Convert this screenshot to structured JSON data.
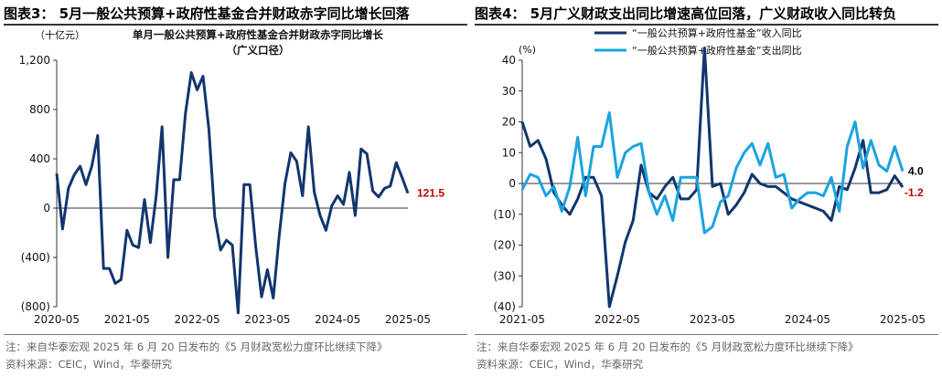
{
  "left": {
    "figure_title": "图表3： 5月一般公共预算+政府性基金合并财政赤字同比增长回落",
    "note": "注：来自华泰宏观 2025 年 6 月 20 日发布的《5 月财政宽松力度环比继续下降》",
    "source": "资料来源：CEIC，Wind，华泰研究",
    "unit_label": "（十亿元）",
    "subtitle_line1": "单月一般公共预算+政府性基金合并财政赤字同比增长",
    "subtitle_line2": "（广义口径）",
    "end_label": "121.5"
  },
  "right": {
    "figure_title": "图表4： 5月广义财政支出同比增速高位回落，广义财政收入同比转负",
    "note": "注：来自华泰宏观 2025 年 6 月 20 日发布的《5 月财政宽松力度环比继续下降》",
    "source": "资料来源：CEIC，Wind，华泰研究",
    "unit_label": "(%)",
    "end_label_1": "4.0",
    "end_label_2": "-1.2"
  },
  "colors": {
    "dark_navy": "#12356e",
    "light_blue": "#1aa3e0",
    "red": "#c00000"
  },
  "chart_data": [
    {
      "type": "line",
      "title": "单月一般公共预算+政府性基金合并财政赤字同比增长（广义口径）",
      "ylabel": "（十亿元）",
      "ylim": [
        -800,
        1200
      ],
      "yticks": [
        -800,
        -400,
        0,
        400,
        800,
        1200
      ],
      "ytick_labels": [
        "(800)",
        "(400)",
        "0",
        "400",
        "800",
        "1,200"
      ],
      "xlim": [
        "2020-05",
        "2025-05"
      ],
      "xticks": [
        "2020-05",
        "2021-05",
        "2022-05",
        "2023-05",
        "2024-05",
        "2025-05"
      ],
      "grid": false,
      "series": [
        {
          "color": "#12356e",
          "x": [
            "2020-05",
            "2020-06",
            "2020-07",
            "2020-08",
            "2020-09",
            "2020-10",
            "2020-11",
            "2020-12",
            "2021-01",
            "2021-02",
            "2021-03",
            "2021-04",
            "2021-05",
            "2021-06",
            "2021-07",
            "2021-08",
            "2021-09",
            "2021-10",
            "2021-11",
            "2021-12",
            "2022-01",
            "2022-02",
            "2022-03",
            "2022-04",
            "2022-05",
            "2022-06",
            "2022-07",
            "2022-08",
            "2022-09",
            "2022-10",
            "2022-11",
            "2022-12",
            "2023-01",
            "2023-02",
            "2023-03",
            "2023-04",
            "2023-05",
            "2023-06",
            "2023-07",
            "2023-08",
            "2023-09",
            "2023-10",
            "2023-11",
            "2023-12",
            "2024-01",
            "2024-02",
            "2024-03",
            "2024-04",
            "2024-05",
            "2024-06",
            "2024-07",
            "2024-08",
            "2024-09",
            "2024-10",
            "2024-11",
            "2024-12",
            "2025-01",
            "2025-02",
            "2025-03",
            "2025-04",
            "2025-05"
          ],
          "values": [
            280,
            -170,
            160,
            270,
            340,
            190,
            340,
            590,
            -490,
            -490,
            -610,
            -580,
            -180,
            -300,
            -320,
            70,
            -280,
            100,
            660,
            -400,
            230,
            230,
            770,
            1100,
            960,
            1070,
            640,
            -70,
            -340,
            -260,
            -300,
            -850,
            190,
            190,
            -310,
            -720,
            -500,
            -730,
            -230,
            200,
            450,
            380,
            100,
            660,
            130,
            -60,
            -180,
            20,
            100,
            30,
            290,
            -60,
            480,
            440,
            140,
            90,
            160,
            180,
            370,
            250,
            121.5
          ]
        }
      ],
      "annotations": [
        {
          "text": "121.5",
          "color": "#c00000"
        }
      ]
    },
    {
      "type": "line",
      "title": "",
      "ylabel": "(%)",
      "ylim": [
        -40,
        40
      ],
      "yticks": [
        -40,
        -30,
        -20,
        -10,
        0,
        10,
        20,
        30,
        40
      ],
      "ytick_labels": [
        "(40)",
        "(30)",
        "(20)",
        "(10)",
        "0",
        "10",
        "20",
        "30",
        "40"
      ],
      "xlim": [
        "2021-05",
        "2025-05"
      ],
      "xticks": [
        "2021-05",
        "2022-05",
        "2023-05",
        "2024-05",
        "2025-05"
      ],
      "grid": false,
      "legend": "top-center",
      "series": [
        {
          "name": "“一般公共预算+政府性基金”收入同比",
          "color": "#12356e",
          "x": [
            "2021-05",
            "2021-06",
            "2021-07",
            "2021-08",
            "2021-09",
            "2021-10",
            "2021-11",
            "2021-12",
            "2022-01",
            "2022-02",
            "2022-03",
            "2022-04",
            "2022-05",
            "2022-06",
            "2022-07",
            "2022-08",
            "2022-09",
            "2022-10",
            "2022-11",
            "2022-12",
            "2023-01",
            "2023-02",
            "2023-03",
            "2023-04",
            "2023-05",
            "2023-06",
            "2023-07",
            "2023-08",
            "2023-09",
            "2023-10",
            "2023-11",
            "2023-12",
            "2024-01",
            "2024-02",
            "2024-03",
            "2024-04",
            "2024-05",
            "2024-06",
            "2024-07",
            "2024-08",
            "2024-09",
            "2024-10",
            "2024-11",
            "2024-12",
            "2025-01",
            "2025-02",
            "2025-03",
            "2025-04",
            "2025-05"
          ],
          "values": [
            20,
            12,
            14,
            8,
            -3,
            -7,
            -10,
            -5,
            2,
            2,
            -4,
            -40,
            -30,
            -19,
            -12,
            6,
            -3,
            -5,
            -1,
            2,
            -5,
            -5,
            -2,
            44,
            -1,
            0,
            -10,
            -7,
            -3,
            3,
            0,
            -1,
            -1,
            -3,
            -5,
            -6,
            -7,
            -8,
            -9,
            -12,
            -1,
            -2,
            5,
            14,
            -3,
            -3,
            -2,
            2.5,
            -1.2
          ]
        },
        {
          "name": "“一般公共预算+政府性基金”支出同比",
          "color": "#1aa3e0",
          "x": [
            "2021-05",
            "2021-06",
            "2021-07",
            "2021-08",
            "2021-09",
            "2021-10",
            "2021-11",
            "2021-12",
            "2022-01",
            "2022-02",
            "2022-03",
            "2022-04",
            "2022-05",
            "2022-06",
            "2022-07",
            "2022-08",
            "2022-09",
            "2022-10",
            "2022-11",
            "2022-12",
            "2023-01",
            "2023-02",
            "2023-03",
            "2023-04",
            "2023-05",
            "2023-06",
            "2023-07",
            "2023-08",
            "2023-09",
            "2023-10",
            "2023-11",
            "2023-12",
            "2024-01",
            "2024-02",
            "2024-03",
            "2024-04",
            "2024-05",
            "2024-06",
            "2024-07",
            "2024-08",
            "2024-09",
            "2024-10",
            "2024-11",
            "2024-12",
            "2025-01",
            "2025-02",
            "2025-03",
            "2025-04",
            "2025-05"
          ],
          "values": [
            -2,
            3,
            2,
            -4,
            -1,
            -9,
            -1,
            15,
            -4,
            12,
            12,
            23,
            2,
            10,
            12,
            13,
            -3,
            -10,
            -4,
            -12,
            2,
            2,
            2,
            -16,
            -14,
            -6,
            -4,
            5,
            10,
            13,
            6,
            13,
            2,
            3,
            -8,
            -5,
            -3,
            -3,
            -4,
            2,
            -9,
            12,
            20,
            5,
            14,
            6,
            4,
            12,
            4.0
          ]
        }
      ],
      "annotations": [
        {
          "text": "4.0",
          "color": "#000000"
        },
        {
          "text": "-1.2",
          "color": "#c00000"
        }
      ]
    }
  ]
}
